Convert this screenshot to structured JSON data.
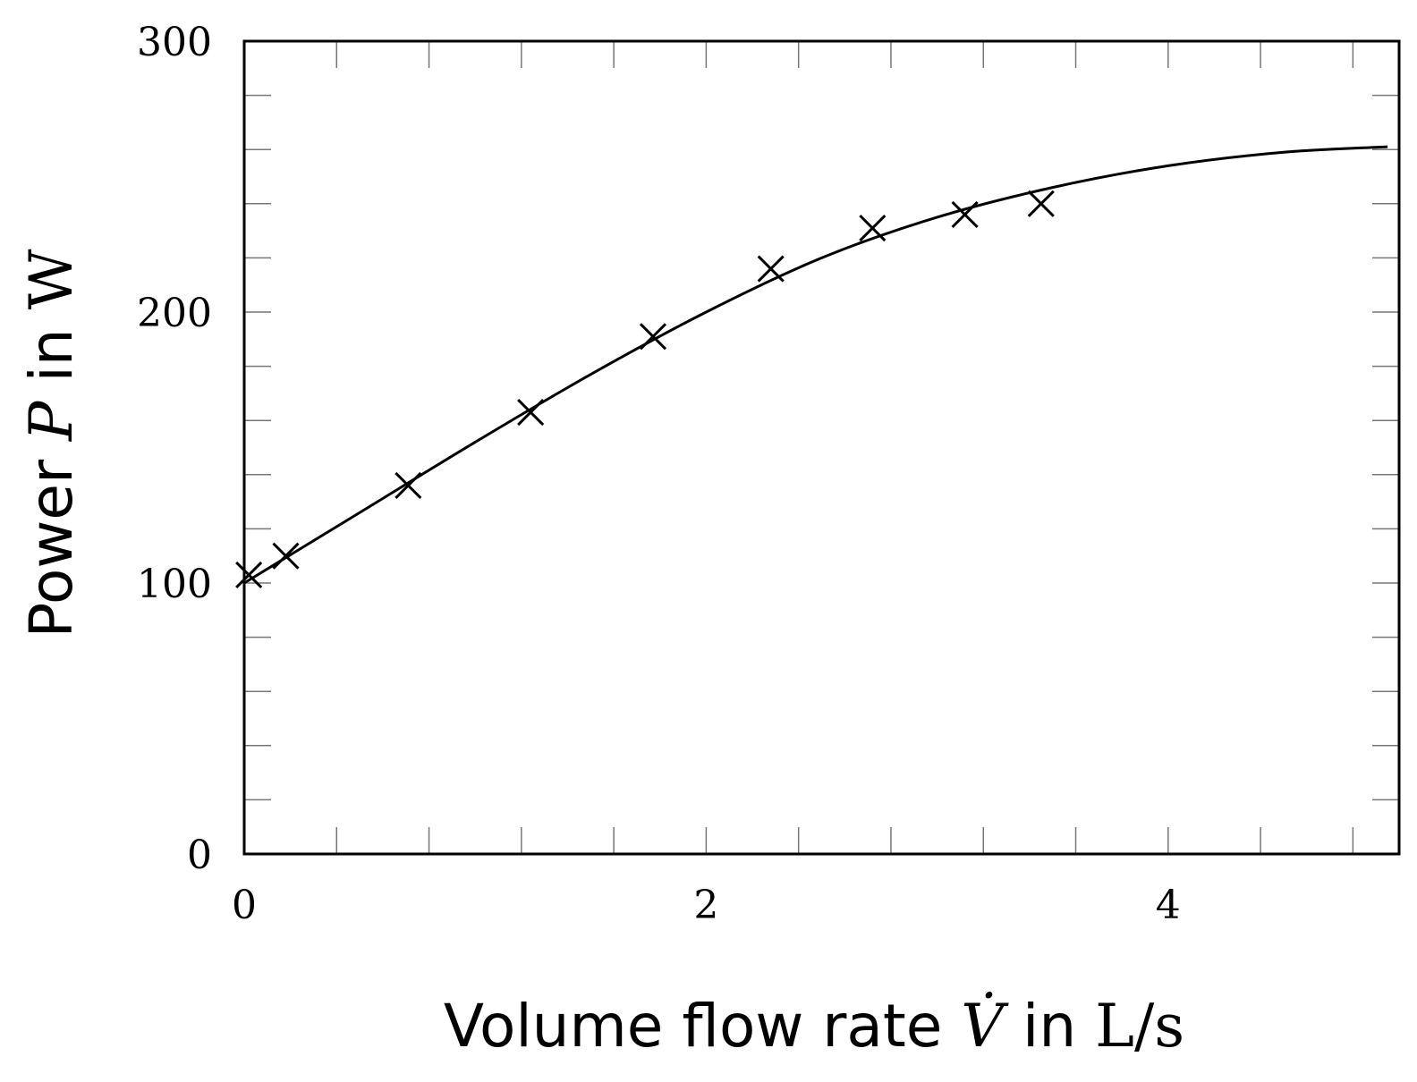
{
  "chart_data": {
    "type": "scatter",
    "xlabel": {
      "prefix": "Volume flow rate ",
      "symbol": "V̇",
      "mid": " in ",
      "unit": "L/s"
    },
    "ylabel": {
      "prefix": "Power ",
      "symbol": "P",
      "mid": " in ",
      "unit": "W"
    },
    "xlim": [
      0,
      5
    ],
    "ylim": [
      0,
      300
    ],
    "xticks": [
      0,
      2,
      4
    ],
    "yticks": [
      0,
      100,
      200,
      300
    ],
    "x_minor_step": 0.4,
    "y_minor_step": 20,
    "grid": false,
    "series": [
      {
        "kind": "markers",
        "marker": "x",
        "x": [
          0.02,
          0.18,
          0.71,
          1.24,
          1.77,
          2.28,
          2.72,
          3.12,
          3.45
        ],
        "y": [
          103,
          110,
          136,
          163,
          191,
          216,
          231,
          236,
          240
        ]
      },
      {
        "kind": "line",
        "x": [
          0,
          0.5,
          1,
          1.5,
          2,
          2.5,
          3,
          3.5,
          4,
          4.5,
          4.95
        ],
        "y": [
          100,
          126,
          152,
          177,
          200,
          220,
          235,
          246,
          254,
          259,
          261
        ]
      }
    ]
  }
}
